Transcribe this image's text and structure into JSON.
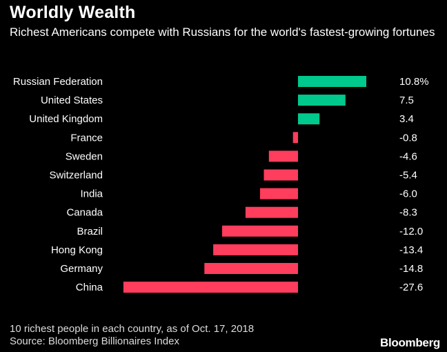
{
  "title": "Worldly Wealth",
  "subtitle": "Richest Americans compete with Russians for the world's fastest-growing fortunes",
  "footnote": "10 richest people in each country, as of Oct. 17, 2018",
  "source": "Source: Bloomberg Billionaires Index",
  "brand": "Bloomberg",
  "colors": {
    "positive": "#00c98d",
    "negative": "#ff3d5d",
    "background": "#000000",
    "text": "#ffffff"
  },
  "chart_data": {
    "type": "bar",
    "orientation": "horizontal",
    "categories": [
      "Russian Federation",
      "United States",
      "United Kingdom",
      "France",
      "Sweden",
      "Switzerland",
      "India",
      "Canada",
      "Brazil",
      "Hong Kong",
      "Germany",
      "China"
    ],
    "values": [
      10.8,
      7.5,
      3.4,
      -0.8,
      -4.6,
      -5.4,
      -6.0,
      -8.3,
      -12.0,
      -13.4,
      -14.8,
      -27.6
    ],
    "value_labels": [
      "10.8%",
      "7.5",
      "3.4",
      "-0.8",
      "-4.6",
      "-5.4",
      "-6.0",
      "-8.3",
      "-12.0",
      "-13.4",
      "-14.8",
      "-27.6"
    ],
    "title": "Worldly Wealth",
    "xlabel": "",
    "ylabel": "",
    "grid": false,
    "legend": "none"
  }
}
